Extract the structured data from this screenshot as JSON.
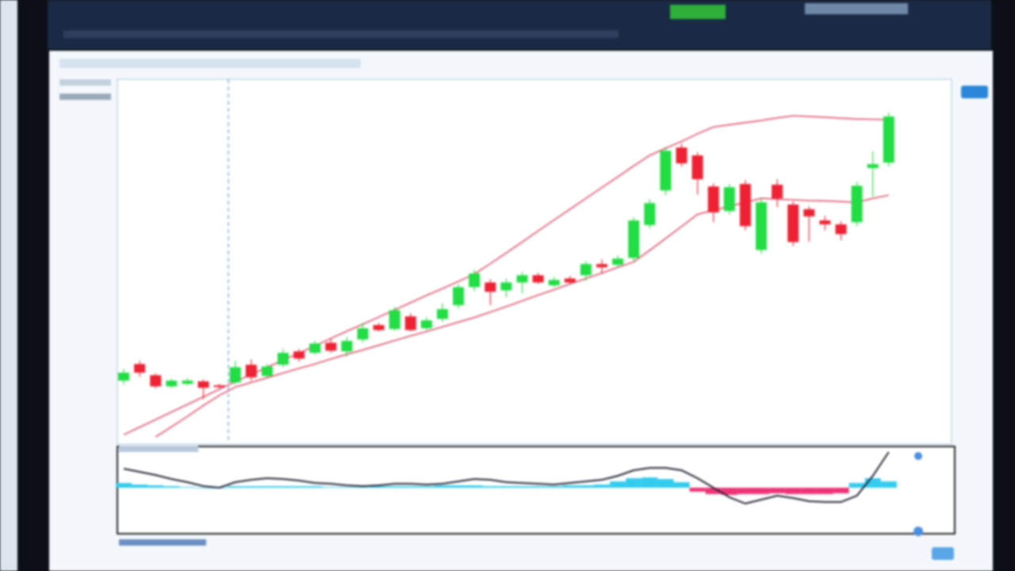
{
  "chart_data": [
    {
      "type": "candlestick",
      "up_color": "#22dd44",
      "down_color": "#ee2233",
      "ylim": [
        0,
        100
      ],
      "open": [
        16.5,
        21.1,
        18.0,
        14.9,
        15.6,
        16.3,
        15.2,
        16.0,
        20.9,
        17.8,
        20.9,
        24.6,
        24.2,
        27.0,
        24.6,
        27.9,
        31.9,
        30.8,
        34.3,
        31.0,
        33.6,
        37.4,
        42.4,
        43.7,
        41.5,
        43.7,
        45.7,
        42.9,
        44.8,
        45.7,
        48.8,
        48.6,
        50.5,
        59.6,
        69.2,
        81.1,
        78.9,
        70.3,
        63.5,
        71.0,
        52.7,
        70.8,
        65.3,
        64.0,
        60.9,
        59.8,
        60.4,
        75.4,
        76.9
      ],
      "high": [
        19.8,
        22.0,
        18.5,
        17.0,
        17.2,
        16.8,
        15.6,
        22.0,
        22.4,
        21.1,
        25.3,
        25.3,
        27.5,
        28.1,
        28.6,
        32.5,
        32.5,
        36.9,
        35.2,
        34.1,
        38.0,
        43.3,
        47.3,
        44.6,
        44.8,
        46.6,
        46.4,
        45.3,
        45.5,
        49.7,
        50.1,
        51.2,
        61.8,
        66.8,
        81.3,
        82.2,
        79.8,
        71.2,
        71.0,
        72.1,
        67.0,
        72.3,
        66.2,
        64.8,
        62.2,
        60.7,
        71.6,
        80.0,
        90.8
      ],
      "low": [
        15.4,
        17.6,
        14.3,
        14.5,
        15.2,
        11.4,
        14.3,
        15.4,
        16.5,
        17.4,
        20.2,
        21.8,
        23.7,
        24.2,
        23.1,
        27.0,
        30.1,
        30.3,
        30.1,
        30.5,
        32.7,
        36.5,
        41.3,
        37.4,
        39.6,
        40.7,
        43.3,
        42.4,
        43.3,
        44.2,
        46.2,
        47.9,
        49.7,
        58.7,
        67.9,
        75.8,
        68.1,
        60.4,
        62.6,
        58.2,
        51.6,
        64.6,
        53.8,
        55.0,
        58.2,
        55.4,
        59.3,
        67.5,
        75.8
      ],
      "close": [
        18.7,
        18.7,
        14.9,
        16.5,
        16.5,
        14.5,
        14.7,
        20.2,
        17.4,
        20.4,
        24.2,
        22.6,
        26.8,
        24.8,
        27.5,
        31.0,
        30.5,
        36.0,
        30.5,
        33.2,
        36.3,
        42.4,
        46.2,
        41.1,
        43.7,
        45.7,
        43.7,
        44.4,
        43.7,
        48.8,
        47.9,
        50.3,
        60.9,
        65.7,
        80.2,
        76.7,
        72.3,
        63.1,
        70.1,
        59.3,
        65.9,
        67.0,
        54.9,
        62.0,
        59.8,
        57.1,
        70.5,
        76.5,
        89.7
      ],
      "overlays": [
        {
          "color": "#e0506a",
          "values": [
            1.5,
            3.6,
            5.7,
            7.8,
            9.9,
            12.0,
            14.1,
            16.2,
            18.2,
            20.2,
            22.2,
            24.1,
            26.1,
            28.2,
            30.2,
            32.1,
            34.1,
            36.1,
            38.1,
            40.1,
            42.0,
            44.0,
            46.0,
            48.9,
            51.9,
            54.9,
            58.0,
            61.0,
            64.0,
            67.0,
            70.0,
            73.0,
            76.0,
            78.9,
            80.9,
            82.8,
            84.9,
            86.8,
            87.4,
            88.0,
            88.6,
            89.3,
            89.9,
            89.7,
            89.5,
            89.2,
            89.0,
            88.9,
            88.8
          ]
        },
        {
          "color": "#e0506a",
          "values": [
            null,
            null,
            0.9,
            3.7,
            6.6,
            9.6,
            12.4,
            14.7,
            16.0,
            17.3,
            18.6,
            19.9,
            21.1,
            22.5,
            23.8,
            25.0,
            26.3,
            27.6,
            28.9,
            30.1,
            31.4,
            32.7,
            34.0,
            35.5,
            37.0,
            38.6,
            40.2,
            41.7,
            43.3,
            44.8,
            46.3,
            47.9,
            49.4,
            52.6,
            55.9,
            59.2,
            62.6,
            63.7,
            64.8,
            65.9,
            67.0,
            66.8,
            66.6,
            66.4,
            66.3,
            66.1,
            65.9,
            67.0,
            67.9
          ]
        }
      ]
    },
    {
      "type": "indicator",
      "ylim": [
        -50,
        50
      ],
      "bar_up_color": "#33ccee",
      "bar_down_color": "#ee3377",
      "line_color": "#222233",
      "bars": [
        6,
        4,
        3,
        2,
        1,
        0,
        0,
        2,
        2,
        2,
        2,
        2,
        2,
        1,
        1,
        1,
        2,
        2,
        2,
        2,
        3,
        3,
        3,
        2,
        2,
        2,
        2,
        2,
        3,
        3,
        4,
        8,
        12,
        13,
        11,
        7,
        -5,
        -8,
        -9,
        -8,
        -8,
        -7,
        -8,
        -8,
        -8,
        -7,
        6,
        12,
        8
      ],
      "line": [
        24,
        20,
        16,
        11,
        7,
        2,
        0,
        7,
        10,
        12,
        11,
        9,
        6,
        5,
        3,
        2,
        3,
        5,
        5,
        4,
        5,
        8,
        11,
        10,
        7,
        6,
        5,
        4,
        6,
        8,
        10,
        15,
        22,
        25,
        25,
        22,
        12,
        0,
        -12,
        -20,
        -15,
        -10,
        -13,
        -17,
        -18,
        -18,
        -10,
        15,
        45
      ]
    }
  ]
}
